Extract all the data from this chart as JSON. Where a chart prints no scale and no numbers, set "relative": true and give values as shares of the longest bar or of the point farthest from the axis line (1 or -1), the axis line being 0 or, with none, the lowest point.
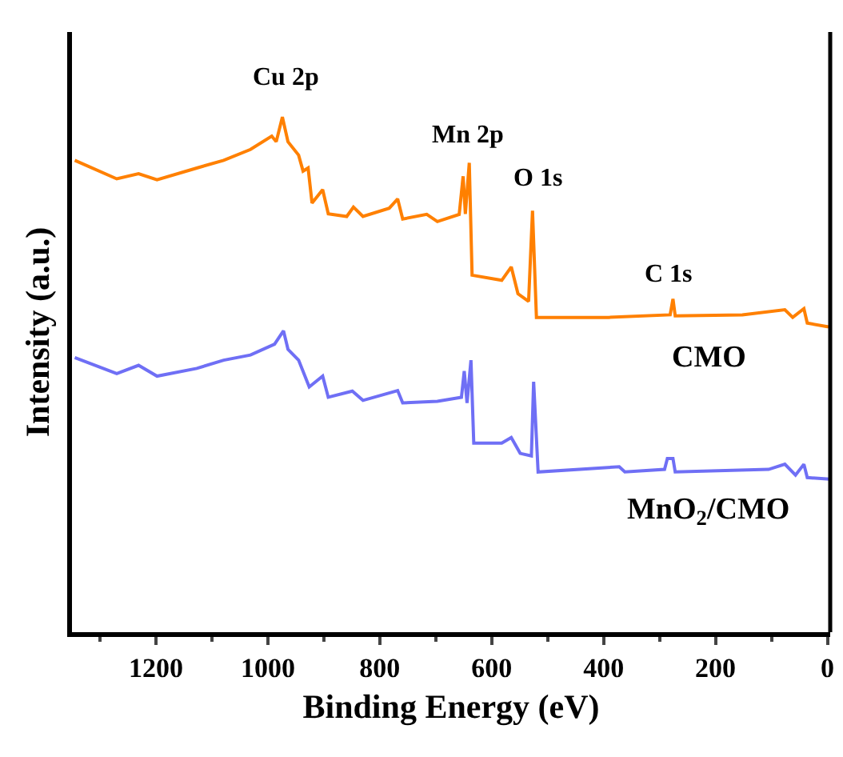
{
  "chart_data": {
    "type": "line",
    "relative": true,
    "xlabel": "Binding Energy (eV)",
    "ylabel": "Intensity (a.u.)",
    "xlim": [
      1350,
      -5
    ],
    "xticks": [
      1200,
      1000,
      800,
      600,
      400,
      200,
      0
    ],
    "grid": false,
    "legend": false,
    "marker": "none",
    "line_style": "solid",
    "annotations": [
      "Cu 2p",
      "Mn 2p",
      "O 1s",
      "C 1s"
    ],
    "series": [
      {
        "name": "CMO",
        "color": "#ff8000",
        "x": [
          1345,
          1270,
          1231,
          1198,
          1127,
          1079,
          1031,
          993,
          985,
          974,
          964,
          945,
          937,
          928,
          921,
          902,
          892,
          859,
          847,
          830,
          783,
          768,
          759,
          716,
          697,
          658,
          651,
          647,
          640,
          635,
          582,
          565,
          553,
          534,
          527,
          520,
          391,
          281,
          276,
          272,
          152,
          76,
          62,
          42,
          36,
          0,
          -4
        ],
        "values": [
          0.916,
          0.88,
          0.89,
          0.878,
          0.901,
          0.916,
          0.937,
          0.963,
          0.952,
          1,
          0.952,
          0.926,
          0.895,
          0.901,
          0.833,
          0.859,
          0.812,
          0.807,
          0.825,
          0.807,
          0.823,
          0.841,
          0.802,
          0.811,
          0.797,
          0.811,
          0.885,
          0.812,
          0.911,
          0.693,
          0.683,
          0.709,
          0.657,
          0.642,
          0.818,
          0.611,
          0.611,
          0.616,
          0.647,
          0.614,
          0.616,
          0.626,
          0.611,
          0.628,
          0.6,
          0.593,
          0.593
        ]
      },
      {
        "name": "MnO$_{2}$/CMO",
        "color": "#6f6ff5",
        "x": [
          1345,
          1270,
          1231,
          1198,
          1127,
          1079,
          1031,
          988,
          972,
          964,
          945,
          926,
          902,
          892,
          849,
          830,
          768,
          759,
          697,
          654,
          649,
          644,
          637,
          632,
          582,
          565,
          549,
          529,
          525,
          517,
          372,
          362,
          291,
          286,
          276,
          272,
          105,
          76,
          57,
          42,
          36,
          -4
        ],
        "values": [
          0.533,
          0.502,
          0.518,
          0.497,
          0.512,
          0.528,
          0.538,
          0.559,
          0.585,
          0.549,
          0.528,
          0.476,
          0.497,
          0.456,
          0.468,
          0.45,
          0.469,
          0.445,
          0.448,
          0.456,
          0.507,
          0.445,
          0.528,
          0.367,
          0.367,
          0.378,
          0.347,
          0.342,
          0.486,
          0.311,
          0.321,
          0.311,
          0.316,
          0.337,
          0.337,
          0.311,
          0.316,
          0.326,
          0.305,
          0.326,
          0.3,
          0.297
        ]
      }
    ]
  }
}
